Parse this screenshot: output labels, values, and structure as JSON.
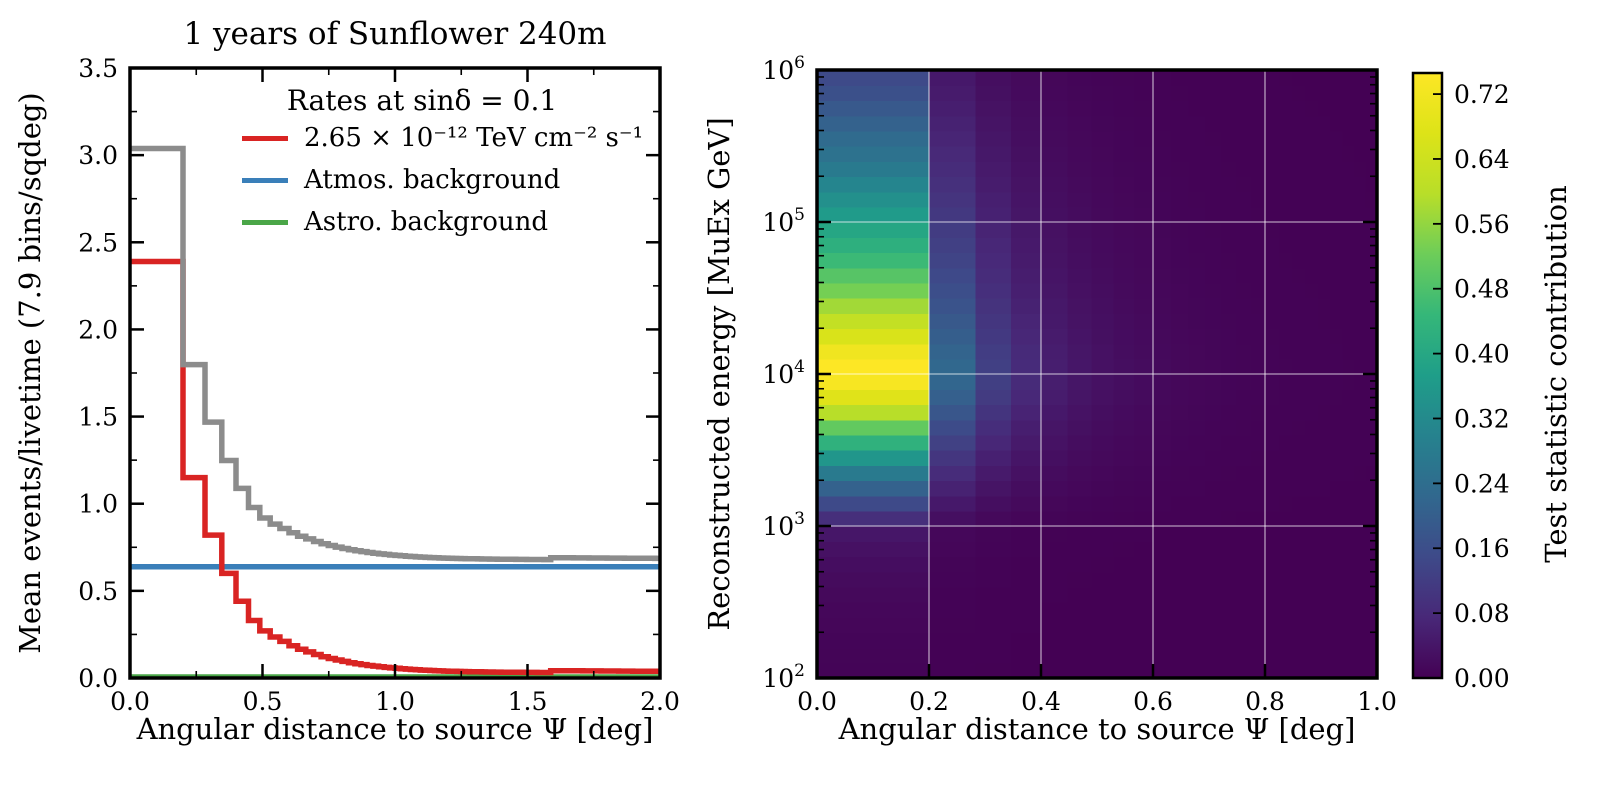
{
  "figure": {
    "background": "#ffffff",
    "frame_color": "#000000"
  },
  "chart_data": [
    {
      "type": "step-histogram",
      "title": "1 years of Sunflower 240m",
      "xlabel": "Angular distance to source Ψ [deg]",
      "ylabel": "Mean events/livetime (7.9 bins/sqdeg)",
      "xlim": [
        0,
        2.0
      ],
      "ylim": [
        0,
        3.5
      ],
      "xticks": [
        0,
        0.5,
        1.0,
        1.5,
        2.0
      ],
      "xtick_labels": [
        "0.0",
        "0.5",
        "1.0",
        "1.5",
        "2.0"
      ],
      "xminor_ticks": [
        0.25,
        0.75,
        1.25,
        1.75
      ],
      "yticks": [
        0,
        0.5,
        1.0,
        1.5,
        2.0,
        2.5,
        3.0,
        3.5
      ],
      "ytick_labels": [
        "0.0",
        "0.5",
        "1.0",
        "1.5",
        "2.0",
        "2.5",
        "3.0",
        "3.5"
      ],
      "yminor_ticks": [
        0.25,
        0.75,
        1.25,
        1.75,
        2.25,
        2.75,
        3.25
      ],
      "legend_title": "Rates at sinδ = 0.1",
      "grid": false,
      "bins": {
        "n": 100,
        "psi_max": 2.0,
        "uniform_in": "psi_squared"
      },
      "series": [
        {
          "name": "signal",
          "legend_label": "2.65 × 10⁻¹² TeV cm⁻² s⁻¹",
          "color": "#d92423",
          "line_width": 5.5,
          "values": [
            2.39,
            1.15,
            0.82,
            0.6,
            0.44,
            0.33,
            0.27,
            0.235,
            0.21,
            0.185,
            0.165,
            0.15,
            0.135,
            0.122,
            0.112,
            0.103,
            0.095,
            0.088,
            0.082,
            0.077,
            0.072,
            0.068,
            0.064,
            0.061,
            0.058,
            0.0555,
            0.053,
            0.051,
            0.049,
            0.047,
            0.0455,
            0.044,
            0.0428,
            0.0417,
            0.0407,
            0.0398,
            0.039,
            0.0383,
            0.0377,
            0.0371,
            0.0366,
            0.0361,
            0.0357,
            0.0353,
            0.0349,
            0.0346,
            0.0343,
            0.034,
            0.0337,
            0.0335,
            0.0333,
            0.0331,
            0.0329,
            0.0327,
            0.0325,
            0.0323,
            0.0322,
            0.032,
            0.0319,
            0.0318,
            0.0317,
            0.0316,
            0.0315,
            0.042,
            0.0419,
            0.0418,
            0.0417,
            0.0416,
            0.0415,
            0.0414,
            0.0413,
            0.0412,
            0.0411,
            0.041,
            0.0409,
            0.0408,
            0.0407,
            0.0406,
            0.0405,
            0.0404,
            0.0403,
            0.0402,
            0.0401,
            0.04,
            0.0399,
            0.0398,
            0.0397,
            0.0396,
            0.0395,
            0.0394,
            0.0393,
            0.0392,
            0.0391,
            0.039,
            0.0389,
            0.0388,
            0.0387,
            0.0386,
            0.0385,
            0.0384
          ]
        },
        {
          "name": "total",
          "color": "#8c8c8c",
          "line_width": 5.5,
          "derived": "signal_plus_backgrounds"
        },
        {
          "name": "atmos-background",
          "legend_label": "Atmos. background",
          "color": "#3a7fb9",
          "line_width": 5.5,
          "constant": 0.638
        },
        {
          "name": "astro-background",
          "legend_label": "Astro. background",
          "color": "#4aa648",
          "line_width": 4,
          "constant": 0.01
        }
      ]
    },
    {
      "type": "heatmap",
      "xlabel": "Angular distance to source Ψ [deg]",
      "ylabel": "Reconstructed energy [MuEx GeV]",
      "xlim": [
        0,
        1.0
      ],
      "xticks": [
        0,
        0.2,
        0.4,
        0.6,
        0.8,
        1.0
      ],
      "xtick_labels": [
        "0.0",
        "0.2",
        "0.4",
        "0.6",
        "0.8",
        "1.0"
      ],
      "ytick_exponents": [
        2,
        3,
        4,
        5,
        6
      ],
      "energy_log10_range": [
        2,
        6
      ],
      "n_energy_bins": 40,
      "psi_bin_edges": [
        0,
        0.2,
        0.2828,
        0.3464,
        0.4,
        0.4472,
        0.4899,
        0.5292,
        0.5657,
        0.6,
        0.6325,
        0.6633,
        0.6928,
        0.7211,
        0.7483,
        0.7746,
        0.8,
        0.8246,
        0.8485,
        0.8718,
        0.8944,
        0.9165,
        0.9381,
        0.9592,
        0.9798,
        1.0
      ],
      "values_model": {
        "description": "cell value = vmax × energy_profile[row] × column_scales[col]; rows are log10(E) bins from 1e2 to 1e6 bottom-to-top",
        "vmax": 0.746,
        "energy_profile": [
          0.008,
          0.009,
          0.011,
          0.013,
          0.016,
          0.02,
          0.025,
          0.032,
          0.042,
          0.055,
          0.12,
          0.2,
          0.28,
          0.37,
          0.47,
          0.575,
          0.68,
          0.8,
          0.91,
          0.98,
          1.0,
          0.96,
          0.89,
          0.83,
          0.77,
          0.71,
          0.66,
          0.61,
          0.57,
          0.53,
          0.49,
          0.45,
          0.41,
          0.37,
          0.34,
          0.31,
          0.28,
          0.25,
          0.22,
          0.2
        ],
        "column_scales": [
          1.0,
          0.3,
          0.17,
          0.11,
          0.075,
          0.055,
          0.042,
          0.033,
          0.027,
          0.022,
          0.018,
          0.015,
          0.013,
          0.011,
          0.0095,
          0.0085,
          0.0075,
          0.0065,
          0.006,
          0.0055,
          0.005,
          0.0045,
          0.004,
          0.0035,
          0.003
        ]
      },
      "gridlines": {
        "x": [
          0.2,
          0.4,
          0.6,
          0.8
        ],
        "y_log10": [
          3,
          4,
          5
        ],
        "color": "rgba(255,255,255,0.5)"
      },
      "colorbar": {
        "label": "Test statistic contribution",
        "vmin": 0.0,
        "vmax": 0.746,
        "tick_values": [
          0,
          0.08,
          0.16,
          0.24,
          0.32,
          0.4,
          0.48,
          0.56,
          0.64,
          0.72
        ],
        "tick_labels": [
          "0.00",
          "0.08",
          "0.16",
          "0.24",
          "0.32",
          "0.40",
          "0.48",
          "0.56",
          "0.64",
          "0.72"
        ]
      },
      "colormap": {
        "name": "viridis",
        "stops": [
          "#440154",
          "#482878",
          "#3e4a89",
          "#31688e",
          "#26828e",
          "#1f9e89",
          "#35b779",
          "#6dcd59",
          "#b8de29",
          "#dde318",
          "#fde725"
        ]
      }
    }
  ]
}
